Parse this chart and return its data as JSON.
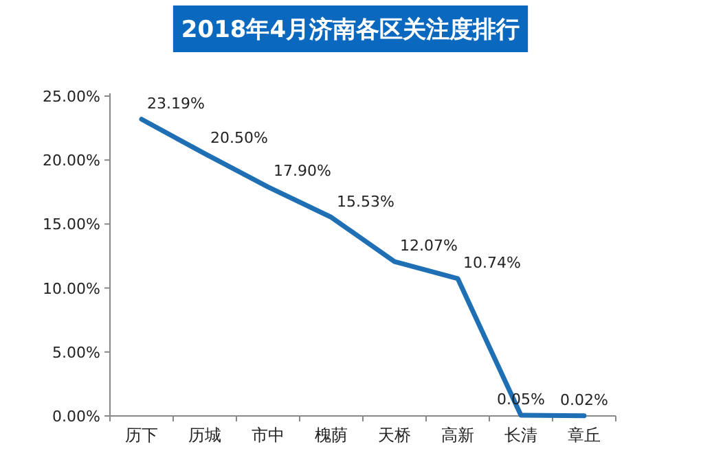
{
  "chart_data": {
    "type": "line",
    "title": "2018年4月济南各区关注度排行",
    "categories": [
      "历下",
      "历城",
      "市中",
      "槐荫",
      "天桥",
      "高新",
      "长清",
      "章丘"
    ],
    "series": [
      {
        "color": "#1f6fb4",
        "values": [
          23.19,
          20.5,
          17.9,
          15.53,
          12.07,
          10.74,
          0.05,
          0.02
        ],
        "value_labels": [
          "23.19%",
          "20.50%",
          "17.90%",
          "15.53%",
          "12.07%",
          "10.74%",
          "0.05%",
          "0.02%"
        ]
      }
    ],
    "ylim": [
      0,
      25
    ],
    "yticks": [
      {
        "value": 0,
        "label": "0.00%"
      },
      {
        "value": 5,
        "label": "5.00%"
      },
      {
        "value": 10,
        "label": "10.00%"
      },
      {
        "value": 15,
        "label": "15.00%"
      },
      {
        "value": 20,
        "label": "20.00%"
      },
      {
        "value": 25,
        "label": "25.00%"
      }
    ],
    "grid": false,
    "marker": "none",
    "line_style": "solid"
  }
}
